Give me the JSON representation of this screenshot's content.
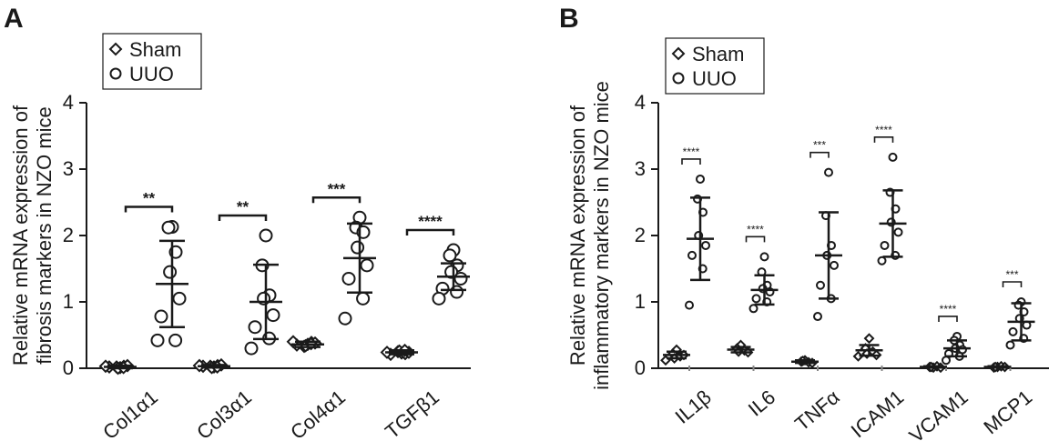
{
  "chart_data": [
    {
      "panel": "A",
      "type": "scatter",
      "ylabel_lines": [
        "Relative mRNA expression of",
        "fibrosis markers in NZO mice"
      ],
      "ylim": [
        0,
        4
      ],
      "yticks": [
        "0",
        "1",
        "2",
        "3",
        "4"
      ],
      "legend": {
        "position": "top-left",
        "entries": [
          {
            "marker": "diamond",
            "label": "Sham"
          },
          {
            "marker": "circle",
            "label": "UUO"
          }
        ]
      },
      "categories": [
        "Col1α1",
        "Col3α1",
        "Col4α1",
        "TGFβ1"
      ],
      "series": [
        {
          "name": "Sham",
          "marker": "diamond",
          "groups": [
            {
              "mean": 0.02,
              "sd": 0.02,
              "points": [
                0.01,
                0.02,
                0.03,
                0.0,
                0.04,
                0.02,
                0.01,
                0.03
              ]
            },
            {
              "mean": 0.03,
              "sd": 0.02,
              "points": [
                0.02,
                0.03,
                0.04,
                0.01,
                0.05,
                0.03,
                0.02,
                0.04
              ]
            },
            {
              "mean": 0.36,
              "sd": 0.04,
              "points": [
                0.36,
                0.33,
                0.39,
                0.34,
                0.38,
                0.35,
                0.37,
                0.4
              ]
            },
            {
              "mean": 0.24,
              "sd": 0.03,
              "points": [
                0.23,
                0.25,
                0.22,
                0.26,
                0.24,
                0.21,
                0.27,
                0.24
              ]
            }
          ]
        },
        {
          "name": "UUO",
          "marker": "circle",
          "groups": [
            {
              "mean": 1.27,
              "sd": 0.65,
              "points": [
                2.13,
                2.12,
                1.75,
                1.45,
                1.05,
                0.78,
                0.42,
                0.42
              ]
            },
            {
              "mean": 1.0,
              "sd": 0.56,
              "points": [
                2.0,
                1.55,
                1.1,
                1.05,
                0.8,
                0.62,
                0.45,
                0.3
              ]
            },
            {
              "mean": 1.66,
              "sd": 0.52,
              "points": [
                2.27,
                2.12,
                2.05,
                1.82,
                1.55,
                1.35,
                1.05,
                0.75
              ]
            },
            {
              "mean": 1.38,
              "sd": 0.2,
              "points": [
                1.78,
                1.7,
                1.55,
                1.45,
                1.35,
                1.2,
                1.15,
                1.05
              ]
            }
          ]
        }
      ],
      "significance": [
        "**",
        "**",
        "***",
        "****"
      ]
    },
    {
      "panel": "B",
      "type": "scatter",
      "ylabel_lines": [
        "Relative mRNA expression of",
        "inflammatory markers in NZO mice"
      ],
      "ylim": [
        0,
        4
      ],
      "yticks": [
        "0",
        "1",
        "2",
        "3",
        "4"
      ],
      "legend": {
        "position": "top-left",
        "entries": [
          {
            "marker": "diamond",
            "label": "Sham"
          },
          {
            "marker": "circle",
            "label": "UUO"
          }
        ]
      },
      "categories": [
        "IL1β",
        "IL6",
        "TNFα",
        "ICAM1",
        "VCAM1",
        "MCP1"
      ],
      "series": [
        {
          "name": "Sham",
          "marker": "diamond",
          "groups": [
            {
              "mean": 0.2,
              "sd": 0.05,
              "points": [
                0.28,
                0.22,
                0.18,
                0.15,
                0.2,
                0.12
              ]
            },
            {
              "mean": 0.28,
              "sd": 0.04,
              "points": [
                0.35,
                0.3,
                0.27,
                0.25,
                0.24
              ]
            },
            {
              "mean": 0.1,
              "sd": 0.02,
              "points": [
                0.12,
                0.1,
                0.09,
                0.11,
                0.08
              ]
            },
            {
              "mean": 0.27,
              "sd": 0.08,
              "points": [
                0.45,
                0.3,
                0.25,
                0.22,
                0.2,
                0.18
              ]
            },
            {
              "mean": 0.02,
              "sd": 0.01,
              "points": [
                0.01,
                0.02,
                0.03,
                0.02,
                0.01
              ]
            },
            {
              "mean": 0.02,
              "sd": 0.01,
              "points": [
                0.02,
                0.01,
                0.03,
                0.02,
                0.02
              ]
            }
          ]
        },
        {
          "name": "UUO",
          "marker": "circle",
          "groups": [
            {
              "mean": 1.95,
              "sd": 0.62,
              "points": [
                2.85,
                2.55,
                2.35,
                2.0,
                1.85,
                1.7,
                1.5,
                0.95
              ]
            },
            {
              "mean": 1.18,
              "sd": 0.22,
              "points": [
                1.68,
                1.45,
                1.25,
                1.2,
                1.15,
                1.05,
                1.0,
                0.9
              ]
            },
            {
              "mean": 1.7,
              "sd": 0.65,
              "points": [
                2.95,
                2.3,
                1.85,
                1.7,
                1.55,
                1.25,
                1.05,
                0.78
              ]
            },
            {
              "mean": 2.18,
              "sd": 0.5,
              "points": [
                3.18,
                2.65,
                2.4,
                2.2,
                2.05,
                1.85,
                1.7,
                1.62
              ]
            },
            {
              "mean": 0.3,
              "sd": 0.12,
              "points": [
                0.48,
                0.42,
                0.35,
                0.3,
                0.28,
                0.22,
                0.18,
                0.12
              ]
            },
            {
              "mean": 0.7,
              "sd": 0.28,
              "points": [
                1.0,
                0.95,
                0.85,
                0.75,
                0.65,
                0.55,
                0.45,
                0.35
              ]
            }
          ]
        }
      ],
      "significance": [
        "****",
        "****",
        "***",
        "****",
        "****",
        "***"
      ]
    }
  ]
}
